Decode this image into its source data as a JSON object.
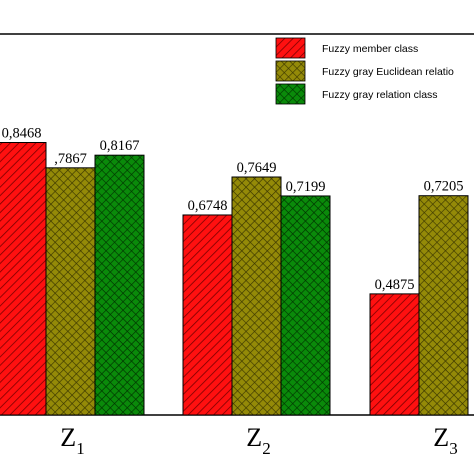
{
  "chart_data": {
    "type": "bar",
    "categories": [
      {
        "main": "Z",
        "sub": "1"
      },
      {
        "main": "Z",
        "sub": "2"
      },
      {
        "main": "Z",
        "sub": "3"
      }
    ],
    "series": [
      {
        "name": "Fuzzy member class",
        "color": "#ff0000",
        "hatch": "diagonal",
        "values": [
          0.8468,
          0.6748,
          0.4875
        ],
        "labels": [
          "0,8468",
          "0,6748",
          "0,4875"
        ]
      },
      {
        "name": "Fuzzy gray Euclidean relatio",
        "color": "#8b8000",
        "hatch": "crosshatch",
        "values": [
          0.7867,
          0.7649,
          0.7205
        ],
        "labels": [
          ",7867",
          "0,7649",
          "0,7205"
        ]
      },
      {
        "name": "Fuzzy gray relation class",
        "color": "#008000",
        "hatch": "crosshatch",
        "values": [
          0.8167,
          0.7199,
          null
        ],
        "labels": [
          "0,8167",
          "0,7199",
          ""
        ]
      }
    ],
    "ylim": [
      0.2,
      1.0
    ],
    "grid": false,
    "legend_position": "top-right"
  }
}
